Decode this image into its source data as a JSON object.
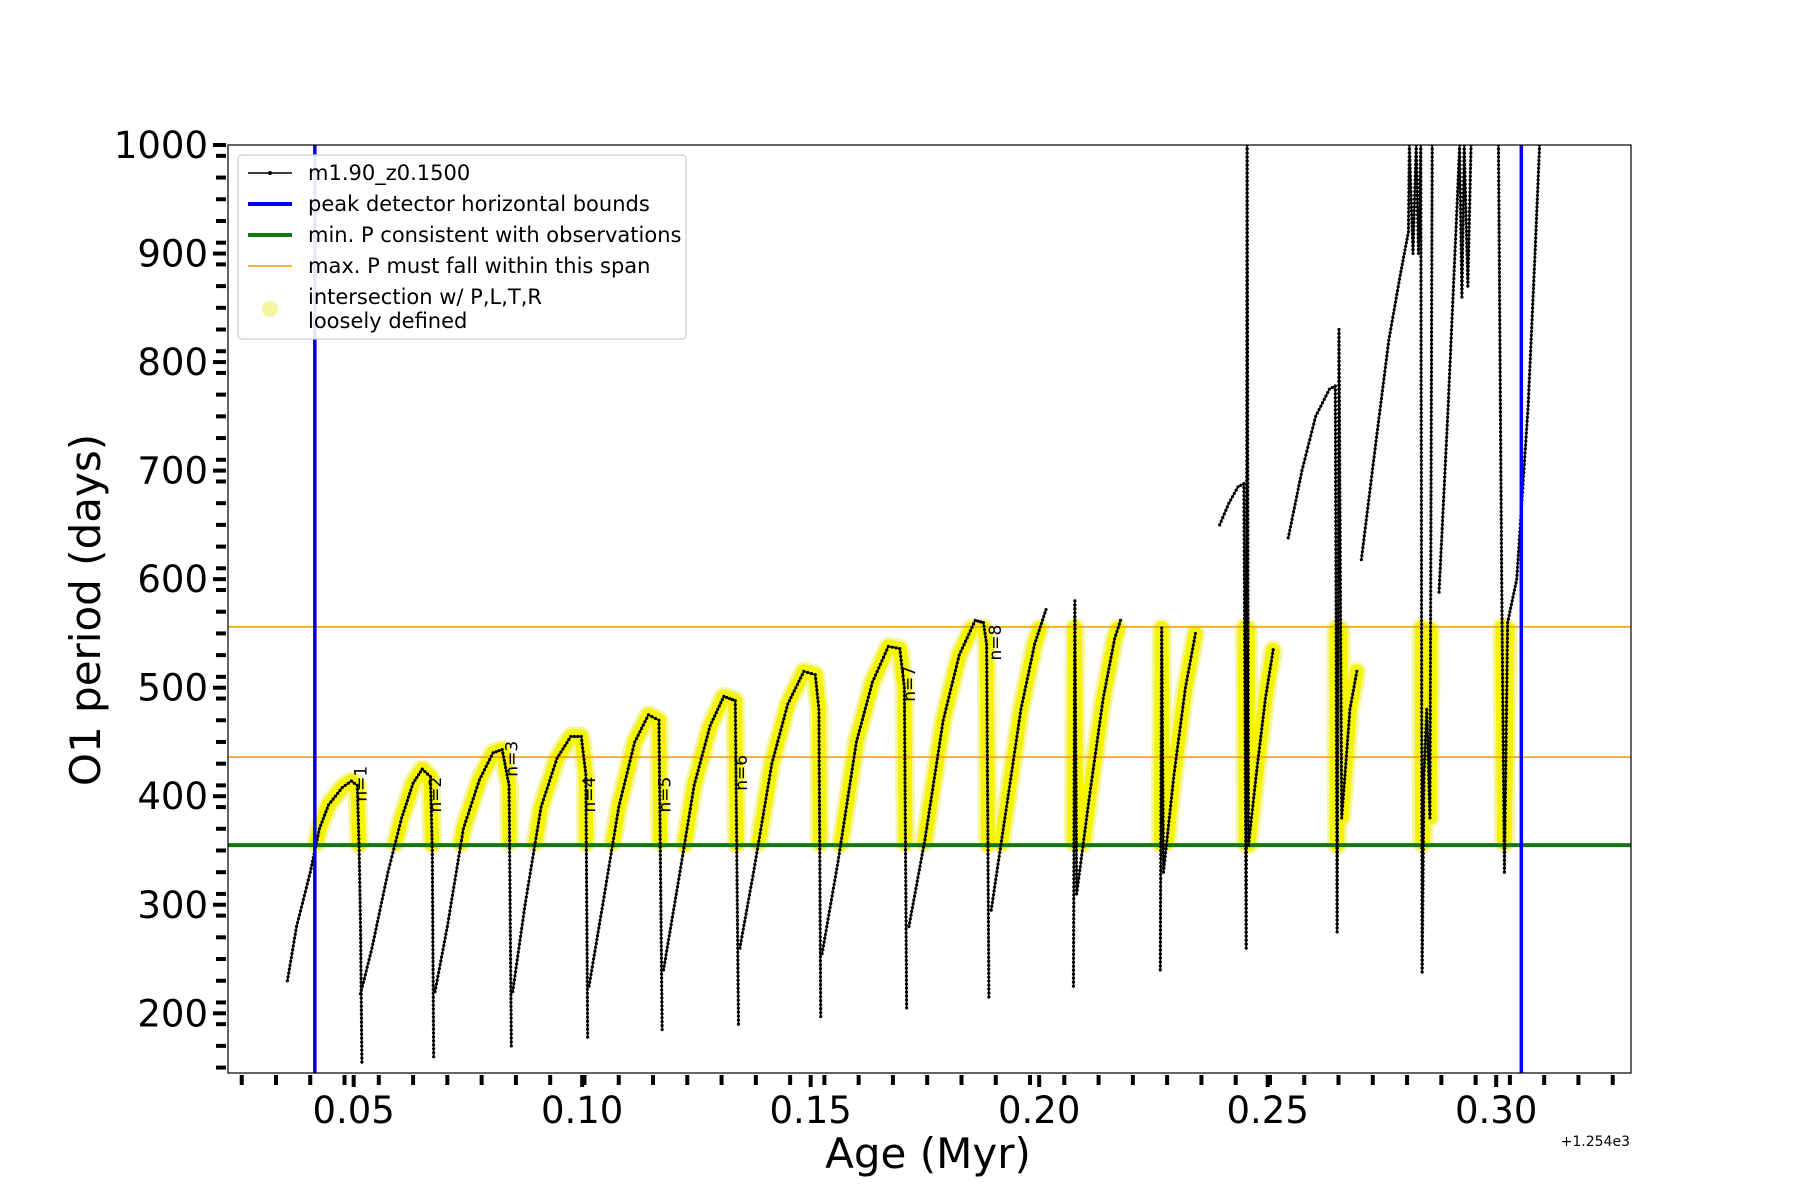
{
  "chart_data": {
    "type": "line",
    "xlabel": "Age (Myr)",
    "ylabel": "O1 period (days)",
    "x_offset_label": "+1.254e3",
    "xlim": [
      0.0225,
      0.3295
    ],
    "ylim": [
      145,
      1000
    ],
    "xticks": [
      {
        "value": 0.05,
        "label": "0.05"
      },
      {
        "value": 0.1,
        "label": "0.10"
      },
      {
        "value": 0.15,
        "label": "0.15"
      },
      {
        "value": 0.2,
        "label": "0.20"
      },
      {
        "value": 0.25,
        "label": "0.25"
      },
      {
        "value": 0.3,
        "label": "0.30"
      }
    ],
    "yticks": [
      {
        "value": 200,
        "label": "200"
      },
      {
        "value": 300,
        "label": "300"
      },
      {
        "value": 400,
        "label": "400"
      },
      {
        "value": 500,
        "label": "500"
      },
      {
        "value": 600,
        "label": "600"
      },
      {
        "value": 700,
        "label": "700"
      },
      {
        "value": 800,
        "label": "800"
      },
      {
        "value": 900,
        "label": "900"
      },
      {
        "value": 1000,
        "label": "1000"
      }
    ],
    "grid": false,
    "legend_position": "top-left",
    "legend": [
      {
        "label": "m1.90_z0.1500",
        "style": "line-dot",
        "color": "#000000"
      },
      {
        "label": "peak detector horizontal bounds",
        "style": "thick-line",
        "color": "#0000ee"
      },
      {
        "label": "min. P consistent with observations",
        "style": "thick-line",
        "color": "#117711"
      },
      {
        "label": "max. P must fall within this span",
        "style": "thin-line",
        "color": "#f5a623"
      },
      {
        "label": "intersection w/ P,L,T,R",
        "label2": "loosely defined",
        "style": "dot",
        "color": "#f5f5a0"
      }
    ],
    "vlines": [
      {
        "x": 0.0415,
        "color": "#0000ee"
      },
      {
        "x": 0.3055,
        "color": "#0000ee"
      }
    ],
    "hlines": [
      {
        "y": 355,
        "color": "#117711",
        "width": 4
      },
      {
        "y": 436,
        "color": "#f5a623",
        "width": 1.8
      },
      {
        "y": 556,
        "color": "#f5a623",
        "width": 1.8
      }
    ],
    "series": {
      "name": "m1.90_z0.1500",
      "color": "#000000",
      "segments": [
        [
          [
            0.0355,
            230
          ],
          [
            0.0375,
            280
          ],
          [
            0.0405,
            330
          ],
          [
            0.0425,
            370
          ],
          [
            0.0445,
            392
          ],
          [
            0.0475,
            408
          ],
          [
            0.0495,
            414
          ],
          [
            0.0508,
            410
          ],
          [
            0.0512,
            350
          ],
          [
            0.0515,
            280
          ],
          [
            0.0518,
            155
          ]
        ],
        [
          [
            0.0515,
            218
          ],
          [
            0.054,
            260
          ],
          [
            0.0575,
            330
          ],
          [
            0.0605,
            380
          ],
          [
            0.063,
            412
          ],
          [
            0.065,
            425
          ],
          [
            0.0668,
            418
          ],
          [
            0.0672,
            350
          ],
          [
            0.0675,
            160
          ]
        ],
        [
          [
            0.0678,
            220
          ],
          [
            0.0705,
            280
          ],
          [
            0.074,
            370
          ],
          [
            0.0775,
            415
          ],
          [
            0.0805,
            440
          ],
          [
            0.0825,
            443
          ],
          [
            0.084,
            410
          ],
          [
            0.0845,
            170
          ]
        ],
        [
          [
            0.0848,
            220
          ],
          [
            0.0875,
            300
          ],
          [
            0.091,
            390
          ],
          [
            0.0945,
            435
          ],
          [
            0.0975,
            455
          ],
          [
            0.0998,
            455
          ],
          [
            0.1008,
            420
          ],
          [
            0.1012,
            178
          ]
        ],
        [
          [
            0.1015,
            225
          ],
          [
            0.1045,
            300
          ],
          [
            0.108,
            390
          ],
          [
            0.1115,
            450
          ],
          [
            0.1145,
            475
          ],
          [
            0.1168,
            470
          ],
          [
            0.1175,
            185
          ]
        ],
        [
          [
            0.1178,
            240
          ],
          [
            0.121,
            320
          ],
          [
            0.1245,
            410
          ],
          [
            0.128,
            465
          ],
          [
            0.131,
            492
          ],
          [
            0.1335,
            488
          ],
          [
            0.1342,
            190
          ]
        ],
        [
          [
            0.1345,
            260
          ],
          [
            0.1375,
            330
          ],
          [
            0.1415,
            430
          ],
          [
            0.145,
            485
          ],
          [
            0.1485,
            515
          ],
          [
            0.151,
            512
          ],
          [
            0.1518,
            480
          ],
          [
            0.1522,
            197
          ]
        ],
        [
          [
            0.1525,
            255
          ],
          [
            0.156,
            340
          ],
          [
            0.16,
            450
          ],
          [
            0.1635,
            505
          ],
          [
            0.167,
            538
          ],
          [
            0.1695,
            536
          ],
          [
            0.1705,
            500
          ],
          [
            0.171,
            205
          ]
        ],
        [
          [
            0.1715,
            280
          ],
          [
            0.175,
            360
          ],
          [
            0.179,
            470
          ],
          [
            0.1825,
            530
          ],
          [
            0.186,
            562
          ],
          [
            0.1878,
            560
          ],
          [
            0.1885,
            540
          ],
          [
            0.189,
            215
          ]
        ],
        [
          [
            0.1895,
            295
          ],
          [
            0.1925,
            380
          ],
          [
            0.196,
            480
          ],
          [
            0.199,
            540
          ],
          [
            0.2015,
            572
          ]
        ],
        [
          [
            0.2075,
            225
          ],
          [
            0.2078,
            580
          ],
          [
            0.2082,
            310
          ],
          [
            0.211,
            400
          ],
          [
            0.214,
            490
          ],
          [
            0.2165,
            545
          ],
          [
            0.2178,
            562
          ]
        ],
        [
          [
            0.2265,
            240
          ],
          [
            0.2268,
            555
          ],
          [
            0.2272,
            330
          ],
          [
            0.2295,
            420
          ],
          [
            0.232,
            500
          ],
          [
            0.2342,
            550
          ]
        ],
        [
          [
            0.2395,
            650
          ],
          [
            0.2415,
            670
          ],
          [
            0.2435,
            685
          ],
          [
            0.2448,
            688
          ],
          [
            0.2453,
            260
          ],
          [
            0.2455,
            1000
          ],
          [
            0.2458,
            355
          ],
          [
            0.2475,
            420
          ],
          [
            0.2495,
            490
          ],
          [
            0.2512,
            535
          ]
        ],
        [
          [
            0.2545,
            638
          ],
          [
            0.2575,
            700
          ],
          [
            0.2605,
            750
          ],
          [
            0.2635,
            775
          ],
          [
            0.2648,
            778
          ],
          [
            0.2652,
            275
          ],
          [
            0.2656,
            830
          ],
          [
            0.2662,
            380
          ],
          [
            0.268,
            480
          ],
          [
            0.2695,
            515
          ]
        ],
        [
          [
            0.2705,
            618
          ],
          [
            0.2735,
            720
          ],
          [
            0.2765,
            820
          ],
          [
            0.279,
            880
          ],
          [
            0.2808,
            920
          ],
          [
            0.281,
            1000
          ],
          [
            0.2818,
            900
          ],
          [
            0.2825,
            1000
          ],
          [
            0.283,
            900
          ],
          [
            0.2835,
            1000
          ],
          [
            0.2838,
            238
          ],
          [
            0.2842,
            420
          ],
          [
            0.2848,
            480
          ],
          [
            0.2855,
            380
          ],
          [
            0.286,
            1000
          ]
        ],
        [
          [
            0.2875,
            588
          ],
          [
            0.2895,
            760
          ],
          [
            0.2915,
            950
          ],
          [
            0.292,
            1000
          ],
          [
            0.2925,
            860
          ],
          [
            0.293,
            1000
          ],
          [
            0.2938,
            870
          ],
          [
            0.2945,
            1000
          ]
        ],
        [
          [
            0.3005,
            1000
          ],
          [
            0.3012,
            600
          ],
          [
            0.3018,
            330
          ],
          [
            0.3025,
            560
          ],
          [
            0.3045,
            600
          ],
          [
            0.307,
            760
          ],
          [
            0.3085,
            900
          ],
          [
            0.3095,
            1000
          ]
        ]
      ]
    },
    "intersection": {
      "color": "#f5f500",
      "halo_color": "#f5f5a0",
      "band": [
        355,
        556
      ],
      "segment_indices": [
        0,
        1,
        2,
        3,
        4,
        5,
        6,
        7,
        8,
        9,
        10,
        11,
        12,
        13,
        14,
        16
      ]
    },
    "annotations": [
      {
        "x": 0.0515,
        "y": 395,
        "text": "n=1"
      },
      {
        "x": 0.0678,
        "y": 385,
        "text": "n=2"
      },
      {
        "x": 0.0845,
        "y": 418,
        "text": "n=3"
      },
      {
        "x": 0.1015,
        "y": 385,
        "text": "n=4"
      },
      {
        "x": 0.118,
        "y": 385,
        "text": "n=5"
      },
      {
        "x": 0.1348,
        "y": 405,
        "text": "n=6"
      },
      {
        "x": 0.1715,
        "y": 487,
        "text": "n=7"
      },
      {
        "x": 0.1903,
        "y": 525,
        "text": "n=8"
      }
    ]
  }
}
